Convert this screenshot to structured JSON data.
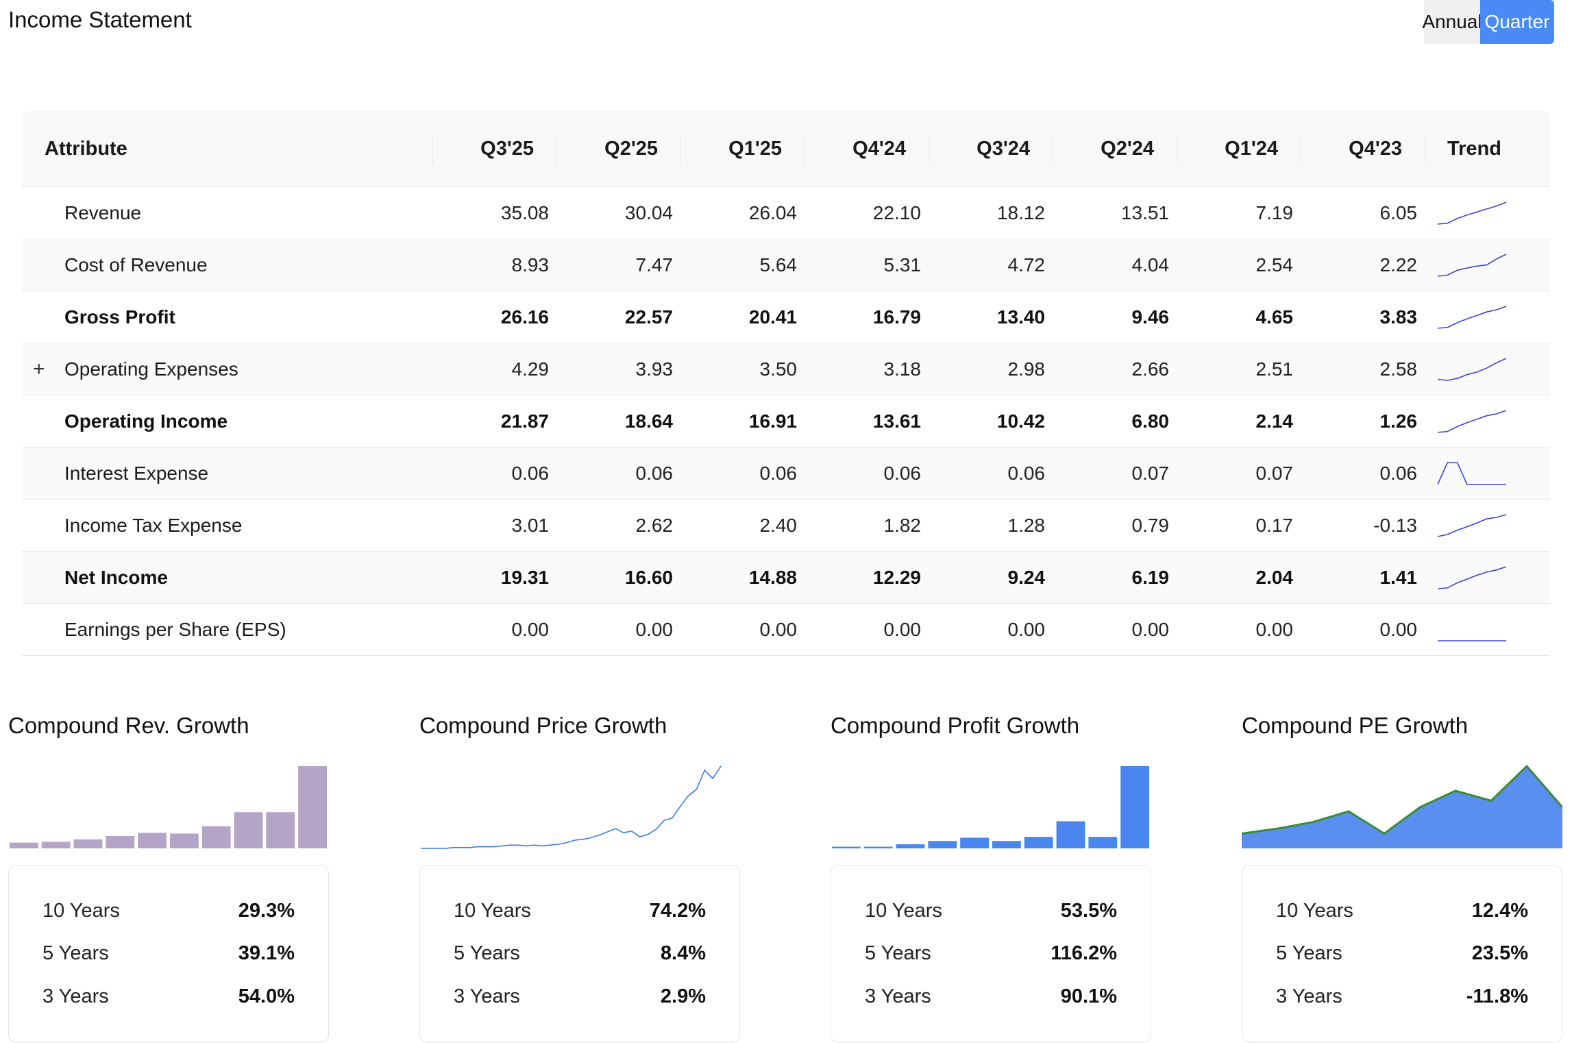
{
  "header": {
    "title": "Income Statement",
    "toggle": {
      "annual": "Annual",
      "quarter": "Quarter",
      "selected": "Quarter"
    }
  },
  "table": {
    "attr_header": "Attribute",
    "periods": [
      "Q3'25",
      "Q2'25",
      "Q1'25",
      "Q4'24",
      "Q3'24",
      "Q2'24",
      "Q1'24",
      "Q4'23"
    ],
    "trend_header": "Trend",
    "rows": [
      {
        "label": "Revenue",
        "bold": false,
        "expandable": false,
        "values": [
          "35.08",
          "30.04",
          "26.04",
          "22.10",
          "18.12",
          "13.51",
          "7.19",
          "6.05"
        ]
      },
      {
        "label": "Cost of Revenue",
        "bold": false,
        "expandable": false,
        "values": [
          "8.93",
          "7.47",
          "5.64",
          "5.31",
          "4.72",
          "4.04",
          "2.54",
          "2.22"
        ]
      },
      {
        "label": "Gross Profit",
        "bold": true,
        "expandable": false,
        "values": [
          "26.16",
          "22.57",
          "20.41",
          "16.79",
          "13.40",
          "9.46",
          "4.65",
          "3.83"
        ]
      },
      {
        "label": "Operating Expenses",
        "bold": false,
        "expandable": true,
        "values": [
          "4.29",
          "3.93",
          "3.50",
          "3.18",
          "2.98",
          "2.66",
          "2.51",
          "2.58"
        ]
      },
      {
        "label": "Operating Income",
        "bold": true,
        "expandable": false,
        "values": [
          "21.87",
          "18.64",
          "16.91",
          "13.61",
          "10.42",
          "6.80",
          "2.14",
          "1.26"
        ]
      },
      {
        "label": "Interest Expense",
        "bold": false,
        "expandable": false,
        "values": [
          "0.06",
          "0.06",
          "0.06",
          "0.06",
          "0.06",
          "0.07",
          "0.07",
          "0.06"
        ]
      },
      {
        "label": "Income Tax Expense",
        "bold": false,
        "expandable": false,
        "values": [
          "3.01",
          "2.62",
          "2.40",
          "1.82",
          "1.28",
          "0.79",
          "0.17",
          "-0.13"
        ]
      },
      {
        "label": "Net Income",
        "bold": true,
        "expandable": false,
        "values": [
          "19.31",
          "16.60",
          "14.88",
          "12.29",
          "9.24",
          "6.19",
          "2.04",
          "1.41"
        ]
      },
      {
        "label": "Earnings per Share (EPS)",
        "bold": false,
        "expandable": false,
        "values": [
          "0.00",
          "0.00",
          "0.00",
          "0.00",
          "0.00",
          "0.00",
          "0.00",
          "0.00"
        ]
      }
    ],
    "expand_icon": "plus-icon",
    "trend_color": "#3b45d6"
  },
  "growth": [
    {
      "title": "Compound Rev. Growth",
      "chart_type": "bar",
      "color": "#b4a5c8",
      "bar_values": [
        0.07,
        0.08,
        0.11,
        0.15,
        0.19,
        0.18,
        0.27,
        0.44,
        0.44,
        1.0
      ],
      "stats": [
        {
          "label": "10 Years",
          "value": "29.3%"
        },
        {
          "label": "5 Years",
          "value": "39.1%"
        },
        {
          "label": "3 Years",
          "value": "54.0%"
        }
      ]
    },
    {
      "title": "Compound Price Growth",
      "chart_type": "line",
      "color": "#3b7ae8",
      "line_values": [
        0.0,
        0.0,
        0.0,
        0.0,
        0.01,
        0.01,
        0.01,
        0.02,
        0.02,
        0.02,
        0.03,
        0.04,
        0.04,
        0.03,
        0.04,
        0.03,
        0.04,
        0.05,
        0.07,
        0.1,
        0.11,
        0.13,
        0.16,
        0.2,
        0.24,
        0.19,
        0.21,
        0.14,
        0.17,
        0.23,
        0.34,
        0.37,
        0.51,
        0.64,
        0.72,
        0.95,
        0.85,
        1.0
      ],
      "stats": [
        {
          "label": "10 Years",
          "value": "74.2%"
        },
        {
          "label": "5 Years",
          "value": "8.4%"
        },
        {
          "label": "3 Years",
          "value": "2.9%"
        }
      ]
    },
    {
      "title": "Compound Profit Growth",
      "chart_type": "bar",
      "color": "#4a86f0",
      "bar_values": [
        0.02,
        0.02,
        0.05,
        0.09,
        0.13,
        0.09,
        0.14,
        0.33,
        0.14,
        1.0
      ],
      "stats": [
        {
          "label": "10 Years",
          "value": "53.5%"
        },
        {
          "label": "5 Years",
          "value": "116.2%"
        },
        {
          "label": "3 Years",
          "value": "90.1%"
        }
      ]
    },
    {
      "title": "Compound PE Growth",
      "chart_type": "area",
      "color": "#5a8ff0",
      "line_color": "#3a8a3a",
      "area_values": [
        0.18,
        0.24,
        0.32,
        0.45,
        0.18,
        0.5,
        0.7,
        0.58,
        1.0,
        0.5
      ],
      "stats": [
        {
          "label": "10 Years",
          "value": "12.4%"
        },
        {
          "label": "5 Years",
          "value": "23.5%"
        },
        {
          "label": "3 Years",
          "value": "-11.8%"
        }
      ]
    }
  ]
}
